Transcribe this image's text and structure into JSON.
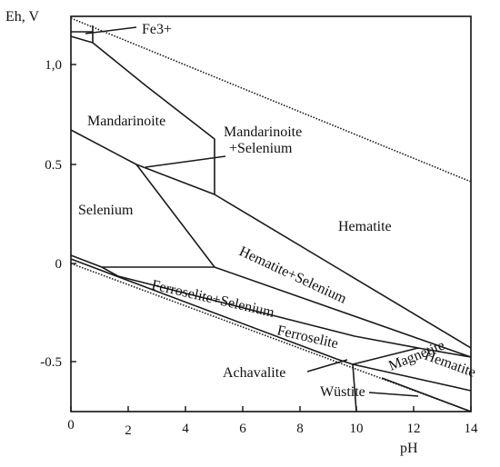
{
  "axes": {
    "y_label": "Eh, V",
    "x_label": "pH",
    "x_ticks": [
      "0",
      "2",
      "4",
      "6",
      "8",
      "10",
      "12",
      "14"
    ],
    "y_ticks": [
      "1,0",
      "0.5",
      "0",
      "-0.5"
    ]
  },
  "regions": {
    "fe3": "Fe3+",
    "mandarinoite": "Mandarinoite",
    "mandarinoite_selenium_1": "Mandarinoite",
    "mandarinoite_selenium_2": "+Selenium",
    "selenium": "Selenium",
    "hematite": "Hematite",
    "hematite_selenium": "Hematite+Selenium",
    "ferroselite_selenium": "Ferroselite+Selenium",
    "ferroselite": "Ferroselite",
    "achavalite": "Achavalite",
    "hematite_lower": "Hematite",
    "magnetite": "Magnetite",
    "wustite": "Wüstite"
  }
}
